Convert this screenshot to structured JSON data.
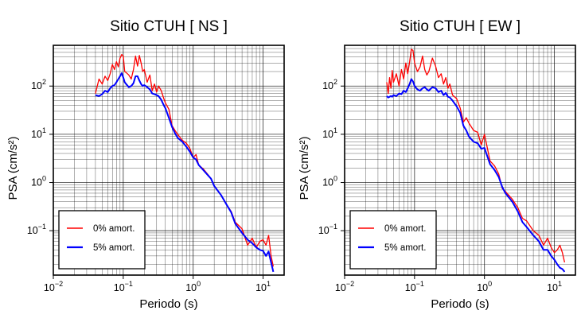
{
  "chart_data": [
    {
      "type": "line",
      "title": "Sitio CTUH [ NS ]",
      "xlabel": "Periodo (s)",
      "ylabel": "PSA (cm/s²)",
      "xscale": "log",
      "yscale": "log",
      "xlim": [
        0.01,
        20
      ],
      "ylim": [
        0.012,
        700
      ],
      "xticks": [
        {
          "base": "10",
          "exp": "−2"
        },
        {
          "base": "10",
          "exp": "−1"
        },
        {
          "base": "10",
          "exp": "0"
        },
        {
          "base": "10",
          "exp": "1"
        }
      ],
      "yticks": [
        {
          "base": "10",
          "exp": "−1"
        },
        {
          "base": "10",
          "exp": "0"
        },
        {
          "base": "10",
          "exp": "1"
        },
        {
          "base": "10",
          "exp": "2"
        }
      ],
      "grid": true,
      "legend_position": "bottom-left",
      "series": [
        {
          "name": "0% amort.",
          "color": "#ff0000",
          "x": [
            0.04,
            0.045,
            0.05,
            0.055,
            0.06,
            0.065,
            0.07,
            0.075,
            0.08,
            0.085,
            0.09,
            0.095,
            0.1,
            0.105,
            0.11,
            0.12,
            0.13,
            0.14,
            0.15,
            0.16,
            0.17,
            0.18,
            0.19,
            0.2,
            0.22,
            0.24,
            0.26,
            0.28,
            0.3,
            0.32,
            0.35,
            0.38,
            0.4,
            0.45,
            0.5,
            0.55,
            0.6,
            0.7,
            0.8,
            0.9,
            1.0,
            1.1,
            1.2,
            1.4,
            1.6,
            1.8,
            2.0,
            2.5,
            3.0,
            3.5,
            4.0,
            5.0,
            6.0,
            7.0,
            8.0,
            9.0,
            10.0,
            11.0,
            12.0,
            13.0,
            14.0
          ],
          "values": [
            70,
            140,
            110,
            160,
            130,
            180,
            280,
            220,
            320,
            250,
            380,
            450,
            420,
            200,
            190,
            170,
            140,
            220,
            420,
            260,
            430,
            300,
            200,
            220,
            120,
            170,
            80,
            110,
            75,
            100,
            80,
            55,
            45,
            33,
            15,
            12,
            10,
            7.5,
            6.5,
            5,
            3.3,
            3.8,
            2.3,
            1.9,
            1.5,
            1.2,
            0.85,
            0.55,
            0.35,
            0.25,
            0.15,
            0.11,
            0.05,
            0.07,
            0.045,
            0.06,
            0.065,
            0.05,
            0.08,
            0.03,
            0.018
          ]
        },
        {
          "name": "5% amort.",
          "color": "#0000ff",
          "x": [
            0.04,
            0.045,
            0.05,
            0.055,
            0.06,
            0.065,
            0.07,
            0.075,
            0.08,
            0.085,
            0.09,
            0.095,
            0.1,
            0.105,
            0.11,
            0.12,
            0.13,
            0.14,
            0.15,
            0.16,
            0.17,
            0.18,
            0.19,
            0.2,
            0.22,
            0.24,
            0.26,
            0.28,
            0.3,
            0.32,
            0.35,
            0.38,
            0.4,
            0.45,
            0.5,
            0.55,
            0.6,
            0.7,
            0.8,
            0.9,
            1.0,
            1.1,
            1.2,
            1.4,
            1.6,
            1.8,
            2.0,
            2.5,
            3.0,
            3.5,
            4.0,
            5.0,
            6.0,
            7.0,
            8.0,
            9.0,
            10.0,
            11.0,
            12.0,
            13.0,
            14.0
          ],
          "values": [
            65,
            62,
            68,
            80,
            75,
            90,
            100,
            105,
            120,
            140,
            160,
            185,
            150,
            120,
            110,
            95,
            100,
            115,
            160,
            160,
            130,
            110,
            100,
            105,
            95,
            85,
            70,
            68,
            65,
            62,
            52,
            40,
            35,
            22,
            14,
            10.5,
            8.5,
            7,
            5.5,
            4.3,
            3.3,
            3,
            2.3,
            1.8,
            1.45,
            1.2,
            0.85,
            0.55,
            0.35,
            0.24,
            0.14,
            0.09,
            0.065,
            0.055,
            0.045,
            0.04,
            0.038,
            0.03,
            0.037,
            0.022,
            0.014
          ]
        }
      ]
    },
    {
      "type": "line",
      "title": "Sitio CTUH [ EW ]",
      "xlabel": "Periodo (s)",
      "ylabel": "PSA (cm/s²)",
      "xscale": "log",
      "yscale": "log",
      "xlim": [
        0.01,
        20
      ],
      "ylim": [
        0.012,
        700
      ],
      "xticks": [
        {
          "base": "10",
          "exp": "−2"
        },
        {
          "base": "10",
          "exp": "−1"
        },
        {
          "base": "10",
          "exp": "0"
        },
        {
          "base": "10",
          "exp": "1"
        }
      ],
      "yticks": [
        {
          "base": "10",
          "exp": "−1"
        },
        {
          "base": "10",
          "exp": "0"
        },
        {
          "base": "10",
          "exp": "1"
        },
        {
          "base": "10",
          "exp": "2"
        }
      ],
      "grid": true,
      "legend_position": "bottom-left",
      "series": [
        {
          "name": "0% amort.",
          "color": "#ff0000",
          "x": [
            0.04,
            0.042,
            0.044,
            0.046,
            0.048,
            0.05,
            0.055,
            0.06,
            0.065,
            0.07,
            0.075,
            0.08,
            0.085,
            0.09,
            0.095,
            0.1,
            0.11,
            0.12,
            0.13,
            0.14,
            0.15,
            0.16,
            0.18,
            0.2,
            0.22,
            0.24,
            0.26,
            0.28,
            0.3,
            0.32,
            0.35,
            0.4,
            0.45,
            0.5,
            0.55,
            0.6,
            0.7,
            0.8,
            0.9,
            1.0,
            1.2,
            1.4,
            1.6,
            1.8,
            2.0,
            2.5,
            3.0,
            3.5,
            4.0,
            5.0,
            6.0,
            7.0,
            8.0,
            9.0,
            10.0,
            11.0,
            12.0,
            13.0,
            14.0
          ],
          "values": [
            120,
            70,
            150,
            90,
            210,
            120,
            180,
            100,
            220,
            140,
            300,
            180,
            320,
            580,
            550,
            300,
            200,
            250,
            420,
            220,
            170,
            200,
            380,
            260,
            150,
            180,
            110,
            150,
            90,
            110,
            65,
            55,
            35,
            18,
            22,
            17,
            12,
            11,
            6,
            10,
            2.8,
            2.2,
            1.5,
            0.75,
            0.65,
            0.45,
            0.3,
            0.18,
            0.16,
            0.1,
            0.08,
            0.05,
            0.07,
            0.045,
            0.035,
            0.04,
            0.05,
            0.035,
            0.022
          ]
        },
        {
          "name": "5% amort.",
          "color": "#0000ff",
          "x": [
            0.04,
            0.042,
            0.044,
            0.046,
            0.048,
            0.05,
            0.055,
            0.06,
            0.065,
            0.07,
            0.075,
            0.08,
            0.085,
            0.09,
            0.095,
            0.1,
            0.11,
            0.12,
            0.13,
            0.14,
            0.15,
            0.16,
            0.18,
            0.2,
            0.22,
            0.24,
            0.26,
            0.28,
            0.3,
            0.32,
            0.35,
            0.4,
            0.45,
            0.5,
            0.55,
            0.6,
            0.7,
            0.8,
            0.9,
            1.0,
            1.2,
            1.4,
            1.6,
            1.8,
            2.0,
            2.5,
            3.0,
            3.5,
            4.0,
            5.0,
            6.0,
            7.0,
            8.0,
            9.0,
            10.0,
            11.0,
            12.0,
            13.0,
            14.0
          ],
          "values": [
            62,
            58,
            60,
            62,
            60,
            65,
            62,
            70,
            68,
            80,
            75,
            90,
            110,
            140,
            125,
            100,
            85,
            80,
            90,
            95,
            85,
            80,
            95,
            90,
            75,
            80,
            65,
            72,
            60,
            58,
            50,
            38,
            28,
            15,
            12,
            9,
            7,
            6.5,
            5,
            5.2,
            2.4,
            1.8,
            1.3,
            0.8,
            0.6,
            0.4,
            0.25,
            0.15,
            0.12,
            0.08,
            0.06,
            0.04,
            0.04,
            0.03,
            0.025,
            0.02,
            0.017,
            0.016,
            0.014
          ]
        }
      ]
    }
  ]
}
